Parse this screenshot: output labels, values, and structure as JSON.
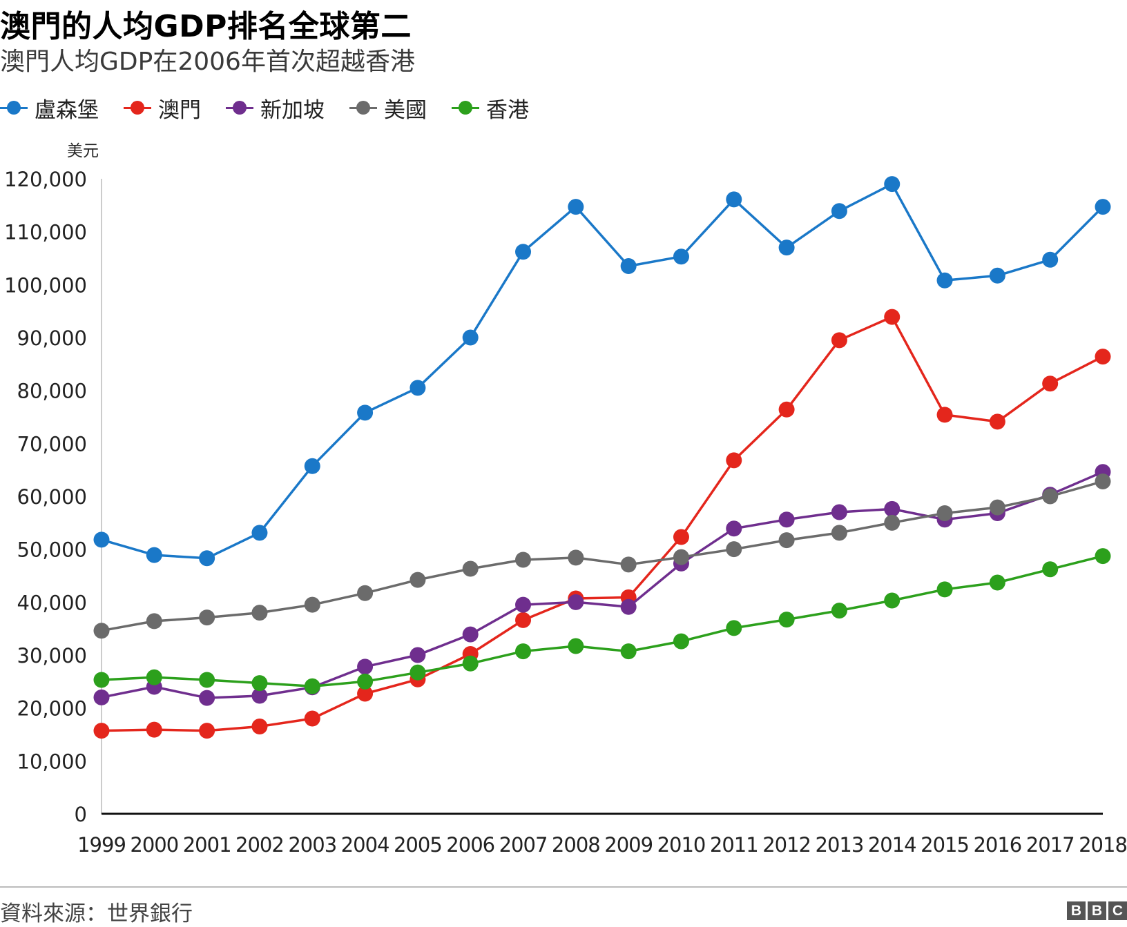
{
  "title": "澳門的人均GDP排名全球第二",
  "subtitle": "澳門人均GDP在2006年首次超越香港",
  "source": "資料來源：世界銀行",
  "logo": {
    "letters": [
      "B",
      "B",
      "C"
    ]
  },
  "chart_data": {
    "type": "line",
    "title": "澳門的人均GDP排名全球第二",
    "subtitle": "澳門人均GDP在2006年首次超越香港",
    "ylabel": "美元",
    "xlabel": "",
    "ylim": [
      0,
      120000
    ],
    "yticks": [
      0,
      10000,
      20000,
      30000,
      40000,
      50000,
      60000,
      70000,
      80000,
      90000,
      100000,
      110000,
      120000
    ],
    "ytick_labels": [
      "0",
      "10,000",
      "20,000",
      "30,000",
      "40,000",
      "50,000",
      "60,000",
      "70,000",
      "80,000",
      "90,000",
      "100,000",
      "110,000",
      "120,000"
    ],
    "grid": false,
    "legend_position": "top-left",
    "categories": [
      "1999",
      "2000",
      "2001",
      "2002",
      "2003",
      "2004",
      "2005",
      "2006",
      "2007",
      "2008",
      "2009",
      "2010",
      "2011",
      "2012",
      "2013",
      "2014",
      "2015",
      "2016",
      "2017",
      "2018"
    ],
    "series": [
      {
        "name": "盧森堡",
        "color": "#1a78c8",
        "values": [
          51800,
          48900,
          48300,
          53100,
          65700,
          75800,
          80500,
          90000,
          106200,
          114700,
          103500,
          105300,
          116100,
          107000,
          113900,
          119000,
          100800,
          101700,
          104700,
          114700
        ]
      },
      {
        "name": "澳門",
        "color": "#e4261c",
        "values": [
          15700,
          15900,
          15700,
          16500,
          18000,
          22700,
          25400,
          30200,
          36600,
          40700,
          40900,
          52300,
          66800,
          76400,
          89500,
          93900,
          75400,
          74100,
          81300,
          86400
        ]
      },
      {
        "name": "新加坡",
        "color": "#6f2e8e",
        "values": [
          22000,
          24000,
          21900,
          22300,
          23900,
          27800,
          30000,
          33900,
          39500,
          40000,
          39100,
          47300,
          53900,
          55600,
          57000,
          57600,
          55600,
          56800,
          60300,
          64600
        ]
      },
      {
        "name": "美國",
        "color": "#6b6b6b",
        "values": [
          34600,
          36400,
          37100,
          38000,
          39500,
          41700,
          44200,
          46300,
          48000,
          48400,
          47100,
          48500,
          50000,
          51700,
          53100,
          55000,
          56800,
          57900,
          60000,
          62800
        ]
      },
      {
        "name": "香港",
        "color": "#2ca01c",
        "values": [
          25300,
          25800,
          25300,
          24700,
          24100,
          25000,
          26700,
          28400,
          30700,
          31700,
          30700,
          32600,
          35100,
          36700,
          38400,
          40300,
          42400,
          43700,
          46200,
          48700
        ]
      }
    ]
  }
}
